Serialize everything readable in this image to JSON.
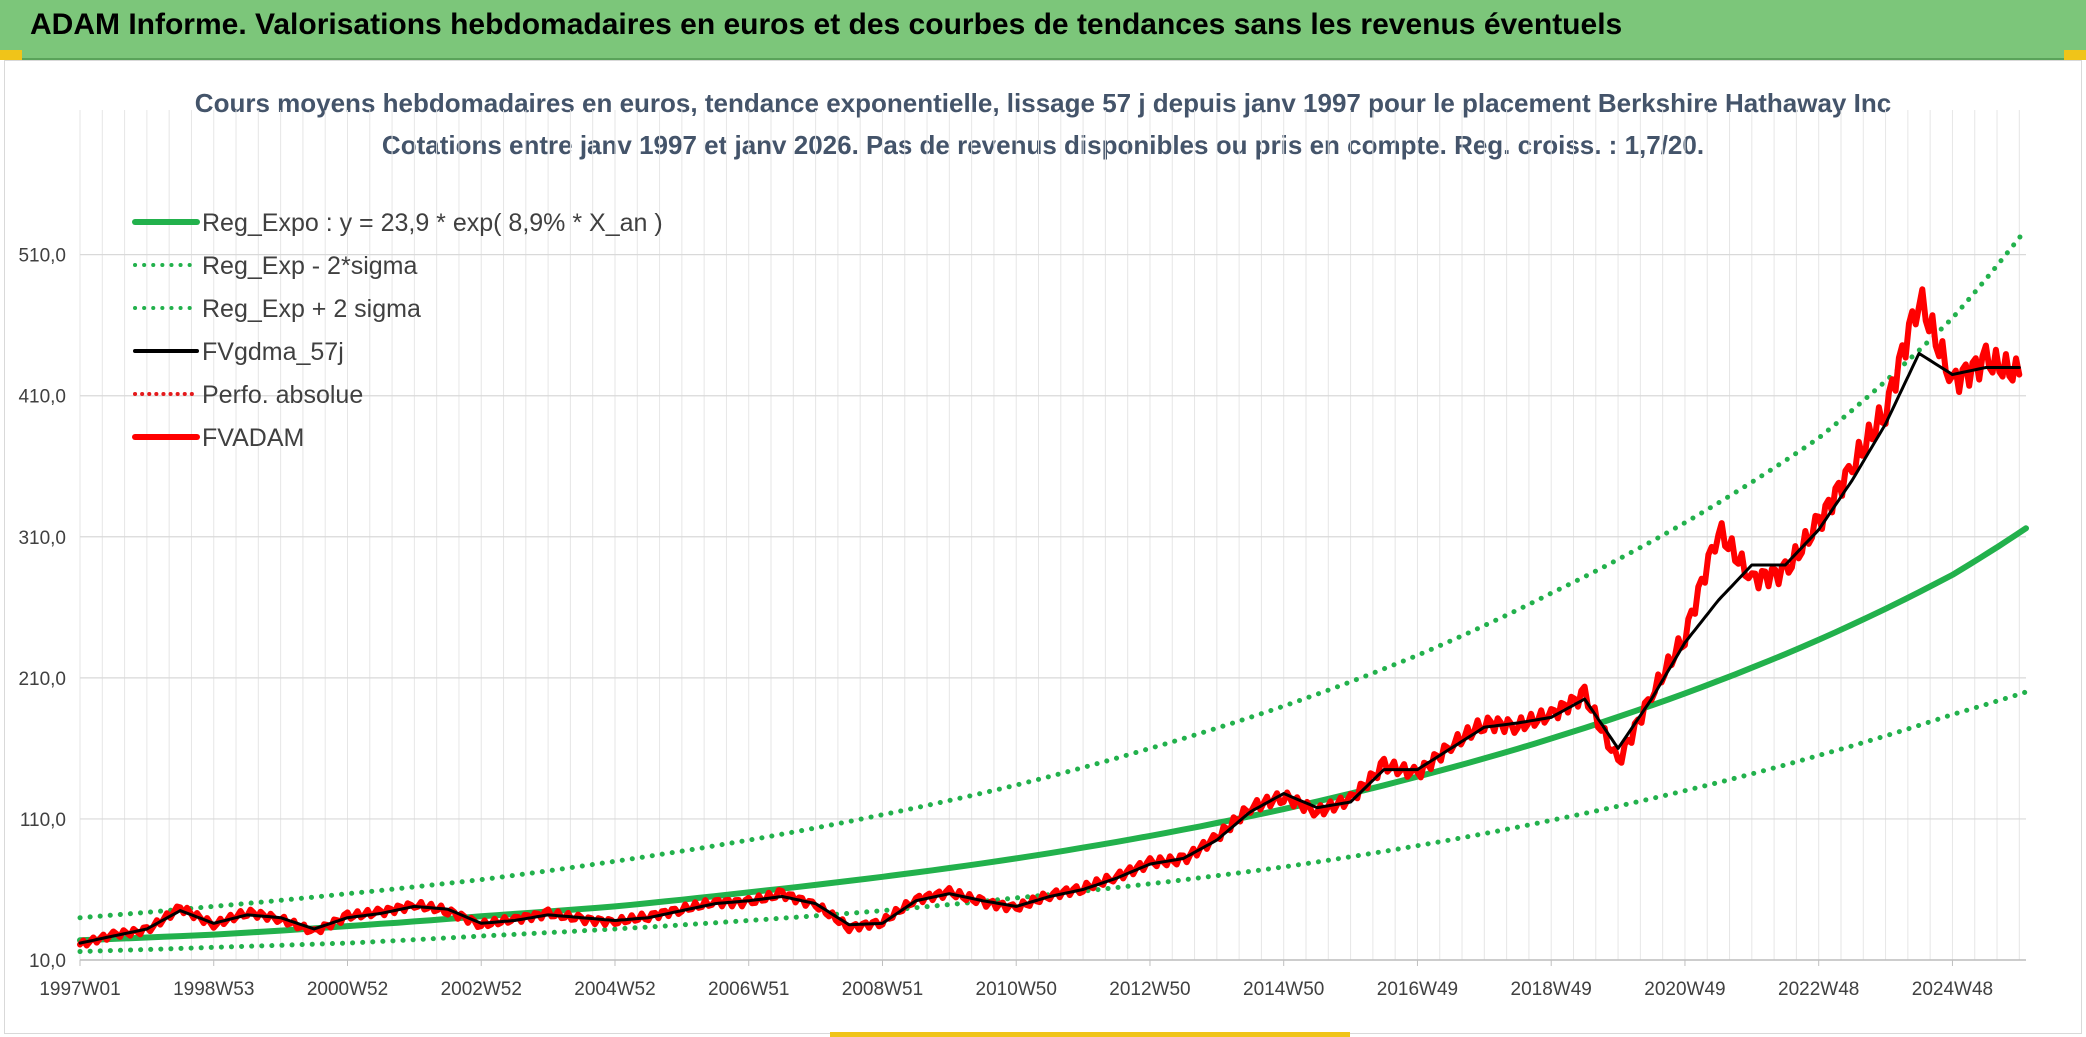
{
  "header": {
    "title": "ADAM Informe. Valorisations hebdomadaires en euros et des courbes de tendances sans les revenus éventuels",
    "background_color": "#7cc67a"
  },
  "chart_data": {
    "type": "line",
    "title": "Cours moyens hebdomadaires en euros, tendance exponentielle, lissage 57 j depuis janv 1997 pour le placement Berkshire Hathaway Inc",
    "subtitle": "Cotations entre janv 1997 et janv 2026. Pas de revenus disponibles ou pris en compte. Reg. croiss. : 1,7/20.",
    "xlabel": "",
    "ylabel": "",
    "x_range": [
      1997.0,
      2026.1
    ],
    "ylim": [
      10,
      570
    ],
    "y_ticks": [
      "10,0",
      "110,0",
      "210,0",
      "310,0",
      "410,0",
      "510,0"
    ],
    "y_tick_values": [
      10,
      110,
      210,
      310,
      410,
      510
    ],
    "x_tick_labels": [
      "1997W01",
      "1998W53",
      "2000W52",
      "2002W52",
      "2004W52",
      "2006W51",
      "2008W51",
      "2010W50",
      "2012W50",
      "2014W50",
      "2016W49",
      "2018W49",
      "2020W49",
      "2022W48",
      "2024W48"
    ],
    "x_tick_years": [
      1997.0,
      1999.0,
      2001.0,
      2003.0,
      2005.0,
      2007.0,
      2009.0,
      2011.0,
      2013.0,
      2015.0,
      2017.0,
      2019.0,
      2021.0,
      2023.0,
      2025.0
    ],
    "grid": true,
    "legend_position": "top-left",
    "series": [
      {
        "name": "Reg_Expo : y = 23,9 * exp( 8,9% *  X_an )",
        "color": "#22b14c",
        "style": "solid-thick",
        "x": [
          1997.0,
          1999.0,
          2001.0,
          2003.0,
          2005.0,
          2007.0,
          2009.0,
          2011.0,
          2013.0,
          2015.0,
          2017.0,
          2019.0,
          2021.0,
          2023.0,
          2025.0,
          2026.1
        ],
        "values": [
          24,
          28,
          34,
          41,
          48,
          58,
          69,
          82,
          98,
          117,
          140,
          167,
          199,
          237,
          283,
          316
        ]
      },
      {
        "name": "Reg_Exp - 2*sigma",
        "color": "#22b14c",
        "style": "dotted",
        "x": [
          1997.0,
          1999.0,
          2001.0,
          2003.0,
          2005.0,
          2007.0,
          2009.0,
          2011.0,
          2013.0,
          2015.0,
          2017.0,
          2019.0,
          2021.0,
          2023.0,
          2025.0,
          2026.1
        ],
        "values": [
          16,
          19,
          22,
          27,
          32,
          38,
          45,
          54,
          64,
          76,
          91,
          109,
          130,
          155,
          184,
          200
        ]
      },
      {
        "name": "Reg_Exp + 2 sigma",
        "color": "#22b14c",
        "style": "dotted",
        "x": [
          1997.0,
          1999.0,
          2001.0,
          2003.0,
          2005.0,
          2007.0,
          2009.0,
          2011.0,
          2013.0,
          2015.0,
          2017.0,
          2019.0,
          2021.0,
          2023.0,
          2025.0,
          2026.1
        ],
        "values": [
          40,
          48,
          57,
          67,
          80,
          95,
          113,
          134,
          160,
          190,
          226,
          270,
          320,
          380,
          465,
          528
        ]
      },
      {
        "name": "FVgdma_57j",
        "color": "#000000",
        "style": "solid",
        "x": [
          1997.0,
          1997.5,
          1998.0,
          1998.5,
          1999.0,
          1999.5,
          2000.0,
          2000.5,
          2001.0,
          2001.5,
          2002.0,
          2002.5,
          2003.0,
          2003.5,
          2004.0,
          2004.5,
          2005.0,
          2005.5,
          2006.0,
          2006.5,
          2007.0,
          2007.5,
          2008.0,
          2008.5,
          2009.0,
          2009.5,
          2010.0,
          2010.5,
          2011.0,
          2011.5,
          2012.0,
          2012.5,
          2013.0,
          2013.5,
          2014.0,
          2014.5,
          2015.0,
          2015.5,
          2016.0,
          2016.5,
          2017.0,
          2017.5,
          2018.0,
          2018.5,
          2019.0,
          2019.5,
          2020.0,
          2020.5,
          2021.0,
          2021.5,
          2022.0,
          2022.5,
          2023.0,
          2023.5,
          2024.0,
          2024.5,
          2025.0,
          2025.5,
          2026.0
        ],
        "values": [
          22,
          27,
          32,
          45,
          36,
          42,
          40,
          32,
          40,
          43,
          48,
          46,
          36,
          38,
          42,
          40,
          38,
          40,
          45,
          50,
          52,
          55,
          50,
          35,
          36,
          52,
          57,
          52,
          48,
          55,
          60,
          68,
          78,
          82,
          95,
          115,
          128,
          118,
          122,
          145,
          145,
          160,
          175,
          178,
          182,
          195,
          160,
          195,
          235,
          265,
          290,
          290,
          315,
          350,
          390,
          440,
          425,
          430,
          430
        ]
      },
      {
        "name": "Perfo. absolue",
        "color": "#e41a1c",
        "style": "dotted",
        "x": [
          1997.0,
          1997.5,
          1998.0,
          1998.5,
          1999.0,
          1999.5,
          2000.0,
          2000.5,
          2001.0,
          2001.5,
          2002.0,
          2002.5,
          2003.0,
          2003.5,
          2004.0,
          2004.5,
          2005.0,
          2005.5,
          2006.0,
          2006.5,
          2007.0,
          2007.5,
          2008.0,
          2008.5,
          2009.0,
          2009.5,
          2010.0,
          2010.5,
          2011.0,
          2011.5,
          2012.0,
          2012.5,
          2013.0,
          2013.5,
          2014.0,
          2014.5,
          2015.0,
          2015.5,
          2016.0,
          2016.5,
          2017.0,
          2017.5,
          2018.0,
          2018.5,
          2019.0,
          2019.5,
          2020.0,
          2020.5,
          2021.0,
          2021.5,
          2022.0,
          2022.5,
          2023.0,
          2023.5,
          2024.0,
          2024.5,
          2025.0,
          2025.5,
          2026.0
        ],
        "values": [
          21,
          28,
          31,
          47,
          35,
          44,
          39,
          30,
          41,
          44,
          49,
          45,
          35,
          39,
          43,
          39,
          37,
          41,
          46,
          51,
          51,
          57,
          49,
          33,
          37,
          53,
          58,
          51,
          47,
          56,
          61,
          69,
          79,
          81,
          97,
          118,
          126,
          115,
          124,
          148,
          142,
          162,
          178,
          176,
          184,
          198,
          150,
          198,
          240,
          315,
          280,
          285,
          320,
          360,
          400,
          480,
          420,
          435,
          425
        ]
      },
      {
        "name": "FVADAM",
        "color": "#ff0000",
        "style": "solid-thick",
        "x": [
          1997.0,
          1997.5,
          1998.0,
          1998.5,
          1999.0,
          1999.5,
          2000.0,
          2000.5,
          2001.0,
          2001.5,
          2002.0,
          2002.5,
          2003.0,
          2003.5,
          2004.0,
          2004.5,
          2005.0,
          2005.5,
          2006.0,
          2006.5,
          2007.0,
          2007.5,
          2008.0,
          2008.5,
          2009.0,
          2009.5,
          2010.0,
          2010.5,
          2011.0,
          2011.5,
          2012.0,
          2012.5,
          2013.0,
          2013.5,
          2014.0,
          2014.5,
          2015.0,
          2015.5,
          2016.0,
          2016.5,
          2017.0,
          2017.5,
          2018.0,
          2018.5,
          2019.0,
          2019.5,
          2020.0,
          2020.5,
          2021.0,
          2021.5,
          2022.0,
          2022.5,
          2023.0,
          2023.5,
          2024.0,
          2024.5,
          2025.0,
          2025.5,
          2026.0
        ],
        "values": [
          21,
          28,
          31,
          47,
          35,
          44,
          39,
          30,
          41,
          44,
          49,
          45,
          35,
          39,
          43,
          39,
          37,
          41,
          46,
          51,
          51,
          57,
          49,
          33,
          37,
          53,
          58,
          51,
          47,
          56,
          61,
          69,
          79,
          81,
          97,
          118,
          126,
          115,
          124,
          148,
          142,
          162,
          178,
          176,
          184,
          198,
          150,
          198,
          240,
          315,
          280,
          285,
          320,
          360,
          400,
          480,
          420,
          435,
          425
        ]
      }
    ]
  }
}
